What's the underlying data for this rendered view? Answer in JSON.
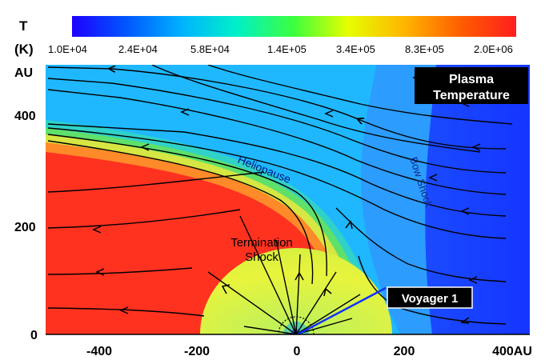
{
  "colorbar": {
    "symbol": "T",
    "unit": "(K)",
    "tick_labels": [
      "1.0E+04",
      "2.4E+04",
      "5.8E+04",
      "1.4E+05",
      "3.4E+05",
      "8.3E+05",
      "2.0E+06"
    ],
    "colors": [
      "#1e00ff",
      "#0055ff",
      "#00b4ff",
      "#00f0c8",
      "#3cff3c",
      "#e6ff00",
      "#ffb400",
      "#ff5a00",
      "#ff1e1e"
    ]
  },
  "axes": {
    "y_unit": "AU",
    "y_ticks": [
      "400",
      "200",
      "0"
    ],
    "x_ticks": [
      "-400",
      "-200",
      "0",
      "200"
    ],
    "x_last_tick": "400AU"
  },
  "labels": {
    "title_line1": "Plasma",
    "title_line2": "Temperature",
    "heliopause": "Heliopause",
    "bow_shock": "Bow Shock",
    "termination_line1": "Termination",
    "termination_line2": "Shock",
    "voyager": "Voyager 1"
  },
  "colors": {
    "hot": "#ff2a1a",
    "inner": "#e4f43a",
    "sheath": "#38b0ff",
    "outer": "#1a3cff",
    "voyager_track": "#1030ff",
    "label_box": "#000000"
  }
}
